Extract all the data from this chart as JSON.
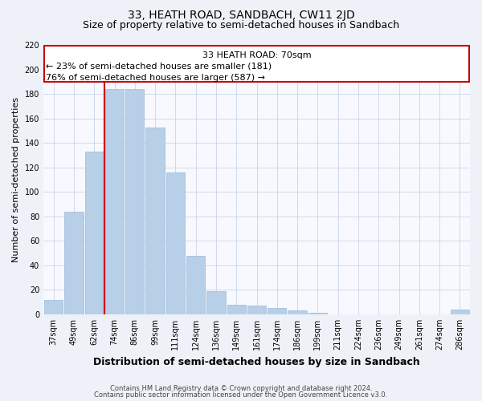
{
  "title": "33, HEATH ROAD, SANDBACH, CW11 2JD",
  "subtitle": "Size of property relative to semi-detached houses in Sandbach",
  "xlabel": "Distribution of semi-detached houses by size in Sandbach",
  "ylabel": "Number of semi-detached properties",
  "categories": [
    "37sqm",
    "49sqm",
    "62sqm",
    "74sqm",
    "86sqm",
    "99sqm",
    "111sqm",
    "124sqm",
    "136sqm",
    "149sqm",
    "161sqm",
    "174sqm",
    "186sqm",
    "199sqm",
    "211sqm",
    "224sqm",
    "236sqm",
    "249sqm",
    "261sqm",
    "274sqm",
    "286sqm"
  ],
  "values": [
    12,
    84,
    133,
    184,
    184,
    153,
    116,
    48,
    19,
    8,
    7,
    5,
    3,
    1,
    0,
    0,
    0,
    0,
    0,
    0,
    4
  ],
  "bar_color": "#b8cfe8",
  "bar_edgecolor": "#9ab8d8",
  "vline_color": "#cc0000",
  "box_edgecolor": "#cc0000",
  "ylim": [
    0,
    220
  ],
  "yticks": [
    0,
    20,
    40,
    60,
    80,
    100,
    120,
    140,
    160,
    180,
    200,
    220
  ],
  "annotation_line1": "33 HEATH ROAD: 70sqm",
  "annotation_line2": "← 23% of semi-detached houses are smaller (181)",
  "annotation_line3": "76% of semi-detached houses are larger (587) →",
  "footnote1": "Contains HM Land Registry data © Crown copyright and database right 2024.",
  "footnote2": "Contains public sector information licensed under the Open Government Licence v3.0.",
  "fig_bg": "#eef2f8",
  "plot_bg": "#f8f9ff",
  "title_fontsize": 10,
  "subtitle_fontsize": 9,
  "ylabel_fontsize": 8,
  "xlabel_fontsize": 9,
  "tick_fontsize": 7,
  "annot_fontsize": 8,
  "footnote_fontsize": 6
}
